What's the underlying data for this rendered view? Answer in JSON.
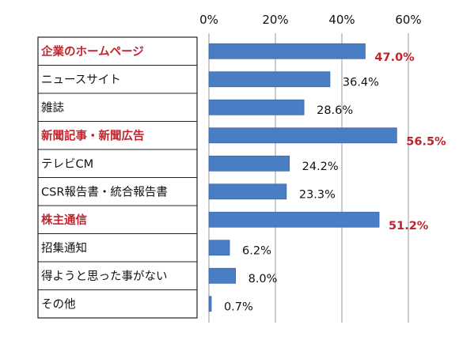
{
  "chart_data": {
    "type": "bar",
    "orientation": "horizontal",
    "categories": [
      "企業のホームページ",
      "ニュースサイト",
      "雑誌",
      "新聞記事・新聞広告",
      "テレビCM",
      "CSR報告書・統合報告書",
      "株主通信",
      "招集通知",
      "得ようと思った事がない",
      "その他"
    ],
    "values": [
      47.0,
      36.4,
      28.6,
      56.5,
      24.2,
      23.3,
      51.2,
      6.2,
      8.0,
      0.7
    ],
    "value_labels": [
      "47.0%",
      "36.4%",
      "28.6%",
      "56.5%",
      "24.2%",
      "23.3%",
      "51.2%",
      "6.2%",
      "8.0%",
      "0.7%"
    ],
    "highlighted": [
      true,
      false,
      false,
      true,
      false,
      false,
      true,
      false,
      false,
      false
    ],
    "xlim": [
      0,
      60
    ],
    "ticks": [
      0,
      20,
      40,
      60
    ],
    "tick_labels": [
      "0%",
      "20%",
      "40%",
      "60%"
    ],
    "grid": true,
    "colors": {
      "bar": "#4a7ec4",
      "bar_edge": "#3a66a8",
      "highlight_text": "#c0252d",
      "grid": "#999999"
    }
  }
}
